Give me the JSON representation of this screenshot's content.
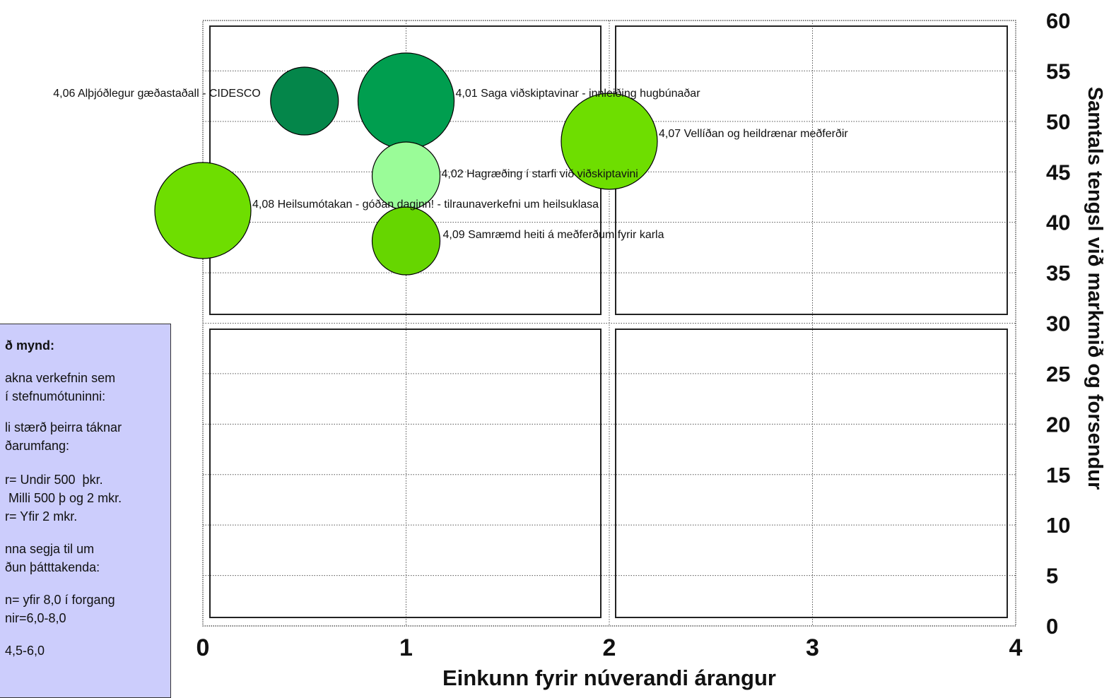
{
  "chart_data": {
    "type": "bubble",
    "xlabel": "Einkunn fyrir núverandi árangur",
    "ylabel": "Samtals tengsl við markmið og forsendur",
    "xlim": [
      0,
      4
    ],
    "ylim": [
      0,
      60
    ],
    "x_ticks": [
      "0",
      "1",
      "2",
      "3",
      "4"
    ],
    "y_ticks": [
      "0",
      "5",
      "10",
      "15",
      "20",
      "25",
      "30",
      "35",
      "40",
      "45",
      "50",
      "55",
      "60"
    ],
    "grid": true,
    "quadrants": true,
    "points": [
      {
        "label": "4,06 Alþjóðlegur gæðastaðall - CIDESCO",
        "x": 0.5,
        "y": 52,
        "size": "medium",
        "color": "#04864a"
      },
      {
        "label": "4,01 Saga viðskiptavinar - innleiðing hugbúnaðar",
        "x": 1.0,
        "y": 52,
        "size": "large",
        "color": "#009e4f"
      },
      {
        "label": "4,07 Vellíðan og heildrænar meðferðir",
        "x": 2.0,
        "y": 48,
        "size": "large",
        "color": "#6ede00"
      },
      {
        "label": "4,02 Hagræðing í starfi við viðskiptavini",
        "x": 1.0,
        "y": 44,
        "size": "medium",
        "color": "#9afc98"
      },
      {
        "label": "4,08 Heilsumótakan - góðan daginn! - tilraunaverkefni um heilsuklasa",
        "x": 0.0,
        "y": 41,
        "size": "large",
        "color": "#6ede00"
      },
      {
        "label": "4,09 Samræmd heiti á meðferðum fyrir karla",
        "x": 1.0,
        "y": 38,
        "size": "medium",
        "color": "#66d600"
      }
    ]
  },
  "legend": {
    "lines": [
      "ð mynd:",
      "akna verkefnin sem",
      "í stefnumótuninni:",
      "li stærð þeirra táknar",
      "ðarumfang:",
      "r= Undir 500  þkr.",
      " Milli 500 þ og 2 mkr.",
      "r= Yfir 2 mkr.",
      "nna segja til um",
      "ðun þátttakenda:",
      "n= yfir 8,0 í forgang",
      "nir=6,0-8,0",
      "4,5-6,0"
    ]
  }
}
